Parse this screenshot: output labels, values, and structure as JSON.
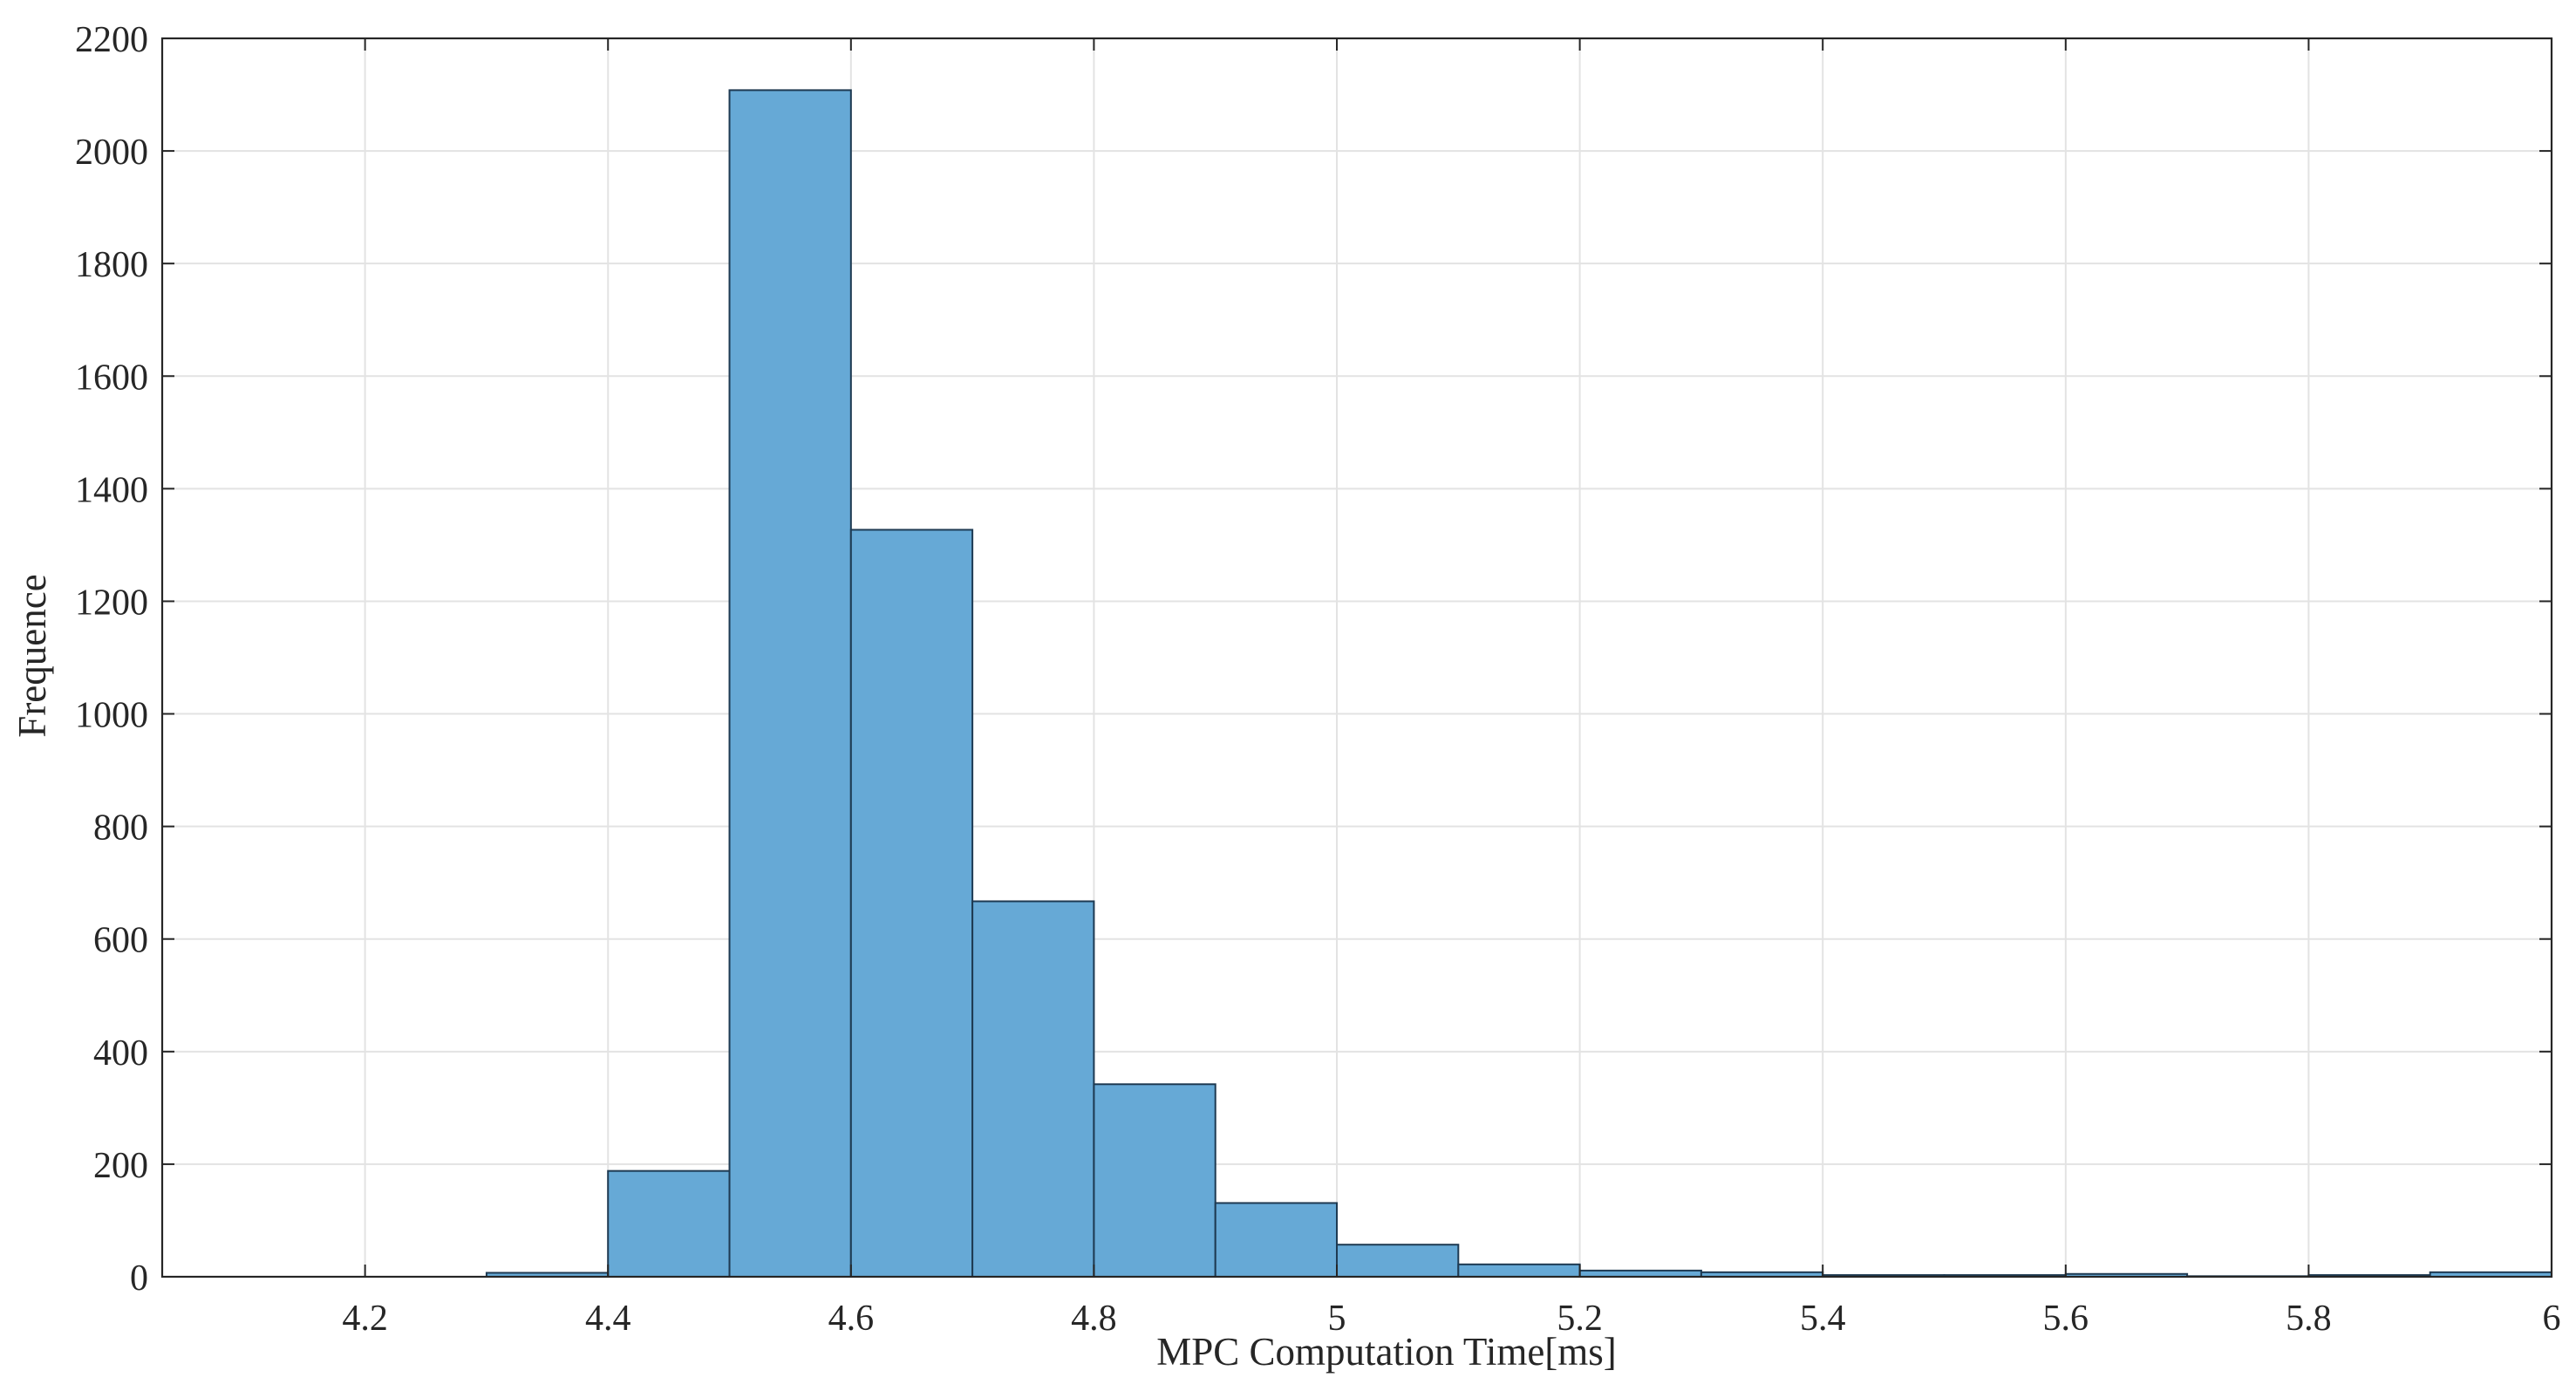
{
  "chart_data": {
    "type": "bar",
    "subtype": "histogram",
    "title": "",
    "xlabel": "MPC Computation Time[ms]",
    "ylabel": "Frequence",
    "xlim": [
      4.033,
      6.0
    ],
    "ylim": [
      0,
      2200
    ],
    "grid": true,
    "legend": "none",
    "bin_width": 0.1,
    "bins": [
      {
        "x0": 4.3,
        "x1": 4.4,
        "count": 7
      },
      {
        "x0": 4.4,
        "x1": 4.5,
        "count": 188
      },
      {
        "x0": 4.5,
        "x1": 4.6,
        "count": 2108
      },
      {
        "x0": 4.6,
        "x1": 4.7,
        "count": 1327
      },
      {
        "x0": 4.7,
        "x1": 4.8,
        "count": 667
      },
      {
        "x0": 4.8,
        "x1": 4.9,
        "count": 342
      },
      {
        "x0": 4.9,
        "x1": 5.0,
        "count": 131
      },
      {
        "x0": 5.0,
        "x1": 5.1,
        "count": 57
      },
      {
        "x0": 5.1,
        "x1": 5.2,
        "count": 22
      },
      {
        "x0": 5.2,
        "x1": 5.3,
        "count": 11
      },
      {
        "x0": 5.3,
        "x1": 5.4,
        "count": 8
      },
      {
        "x0": 5.4,
        "x1": 5.5,
        "count": 3
      },
      {
        "x0": 5.5,
        "x1": 5.6,
        "count": 3
      },
      {
        "x0": 5.6,
        "x1": 5.7,
        "count": 5
      },
      {
        "x0": 5.7,
        "x1": 5.8,
        "count": 1
      },
      {
        "x0": 5.8,
        "x1": 5.9,
        "count": 3
      },
      {
        "x0": 5.9,
        "x1": 6.0,
        "count": 8
      }
    ],
    "x_ticks": [
      {
        "value": 4.2,
        "label": "4.2"
      },
      {
        "value": 4.4,
        "label": "4.4"
      },
      {
        "value": 4.6,
        "label": "4.6"
      },
      {
        "value": 4.8,
        "label": "4.8"
      },
      {
        "value": 5.0,
        "label": "5"
      },
      {
        "value": 5.2,
        "label": "5.2"
      },
      {
        "value": 5.4,
        "label": "5.4"
      },
      {
        "value": 5.6,
        "label": "5.6"
      },
      {
        "value": 5.8,
        "label": "5.8"
      },
      {
        "value": 6.0,
        "label": "6"
      }
    ],
    "y_ticks": [
      {
        "value": 0,
        "label": "0"
      },
      {
        "value": 200,
        "label": "200"
      },
      {
        "value": 400,
        "label": "400"
      },
      {
        "value": 600,
        "label": "600"
      },
      {
        "value": 800,
        "label": "800"
      },
      {
        "value": 1000,
        "label": "1000"
      },
      {
        "value": 1200,
        "label": "1200"
      },
      {
        "value": 1400,
        "label": "1400"
      },
      {
        "value": 1600,
        "label": "1600"
      },
      {
        "value": 1800,
        "label": "1800"
      },
      {
        "value": 2000,
        "label": "2000"
      },
      {
        "value": 2200,
        "label": "2200"
      }
    ],
    "colors": {
      "bar_fill": "#66A9D6",
      "bar_edge": "#1E3A52",
      "grid": "#E3E3E3",
      "axis": "#262626",
      "text": "#262626"
    }
  }
}
